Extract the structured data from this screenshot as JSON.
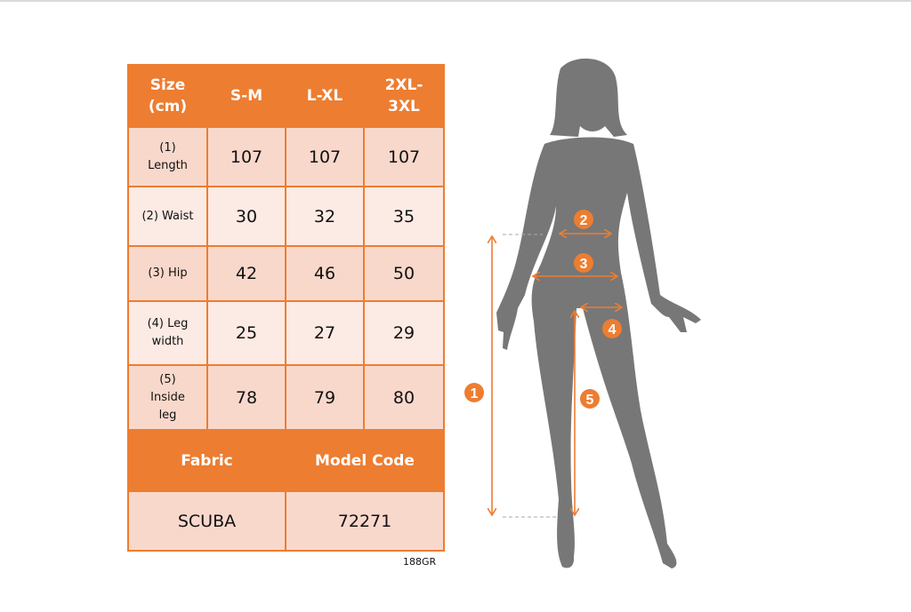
{
  "table": {
    "header": [
      "Size\n(cm)",
      "S-M",
      "L-XL",
      "2XL-\n3XL"
    ],
    "rows": [
      {
        "label": "(1)\nLength",
        "values": [
          "107",
          "107",
          "107"
        ]
      },
      {
        "label": "(2) Waist",
        "values": [
          "30",
          "32",
          "35"
        ]
      },
      {
        "label": "(3) Hip",
        "values": [
          "42",
          "46",
          "50"
        ]
      },
      {
        "label": "(4) Leg\nwidth",
        "values": [
          "25",
          "27",
          "29"
        ]
      },
      {
        "label": "(5)\nInside\nleg",
        "values": [
          "78",
          "79",
          "80"
        ]
      }
    ],
    "footer_header": [
      "Fabric",
      "Model Code"
    ],
    "footer_values": [
      "SCUBA",
      "72271"
    ]
  },
  "product_code": "188GR",
  "figure": {
    "markers": [
      "1",
      "2",
      "3",
      "4",
      "5"
    ],
    "colors": {
      "accent": "#ED7D31",
      "silhouette": "#777777"
    }
  }
}
